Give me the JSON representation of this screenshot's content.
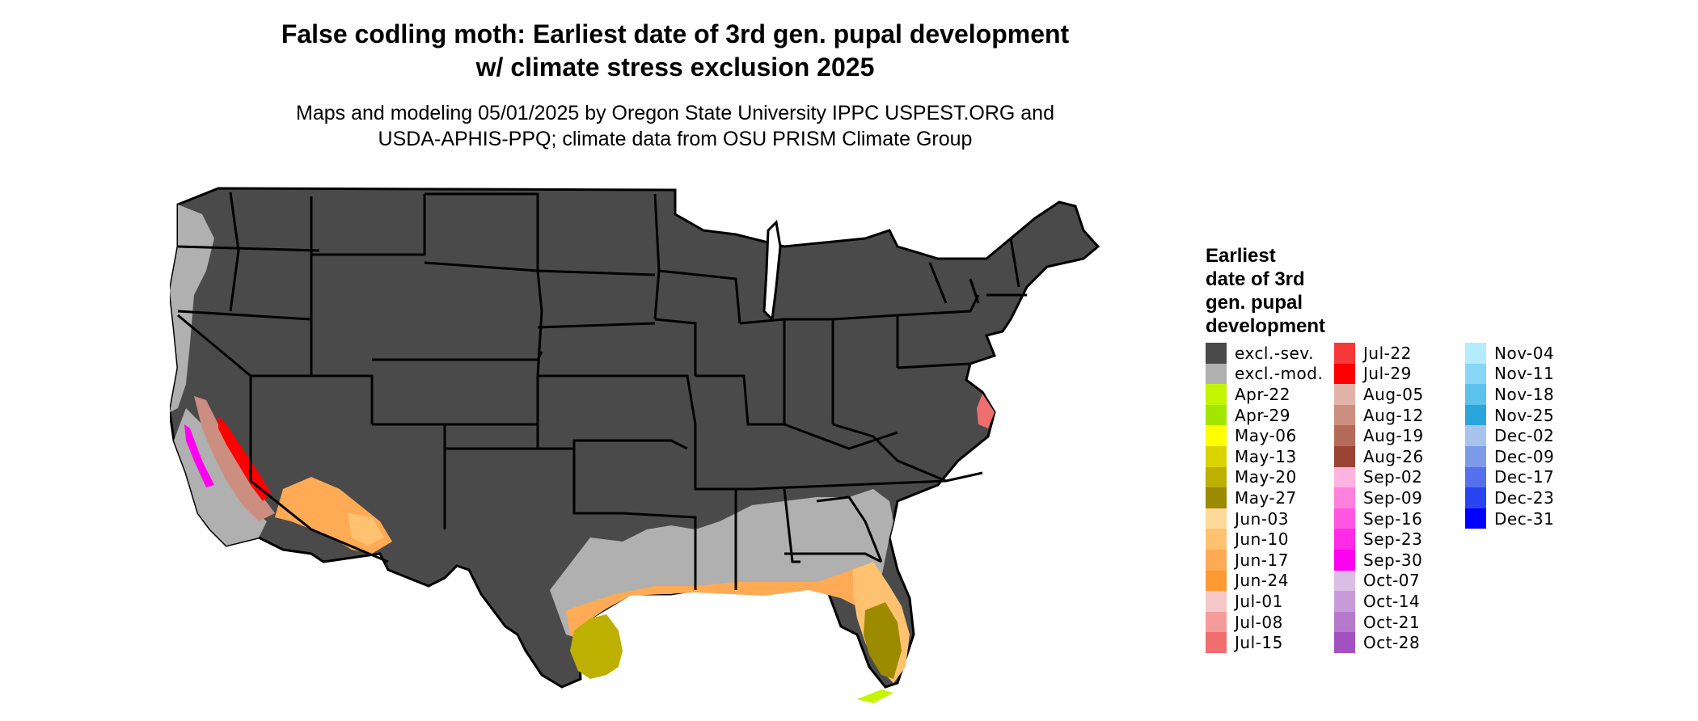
{
  "title_line1": "False codling moth: Earliest date of 3rd gen. pupal development",
  "title_line2": "w/ climate stress exclusion 2025",
  "subtitle_line1": "Maps and modeling 05/01/2025 by Oregon State University IPPC USPEST.ORG and",
  "subtitle_line2": "USDA-APHIS-PPQ; climate data from OSU PRISM Climate Group",
  "legend": {
    "title_lines": [
      "Earliest",
      "date of 3rd",
      "gen. pupal",
      "development"
    ],
    "columns": [
      [
        {
          "label": "excl.-sev.",
          "color": "#4a4a4a"
        },
        {
          "label": "excl.-mod.",
          "color": "#b0b0b0"
        },
        {
          "label": "Apr-22",
          "color": "#c3f500"
        },
        {
          "label": "Apr-29",
          "color": "#a3e600"
        },
        {
          "label": "May-06",
          "color": "#ffff00"
        },
        {
          "label": "May-13",
          "color": "#d9d400"
        },
        {
          "label": "May-20",
          "color": "#bdb000"
        },
        {
          "label": "May-27",
          "color": "#9c8a00"
        },
        {
          "label": "Jun-03",
          "color": "#ffd99a"
        },
        {
          "label": "Jun-10",
          "color": "#ffc270"
        },
        {
          "label": "Jun-17",
          "color": "#ffaa55"
        },
        {
          "label": "Jun-24",
          "color": "#ff9933"
        },
        {
          "label": "Jul-01",
          "color": "#f7c8c8"
        },
        {
          "label": "Jul-08",
          "color": "#f49b9b"
        },
        {
          "label": "Jul-15",
          "color": "#f06e6e"
        }
      ],
      [
        {
          "label": "Jul-22",
          "color": "#f73939"
        },
        {
          "label": "Jul-29",
          "color": "#ff0000"
        },
        {
          "label": "Aug-05",
          "color": "#e2b3a8"
        },
        {
          "label": "Aug-12",
          "color": "#cc8e80"
        },
        {
          "label": "Aug-19",
          "color": "#b56b5a"
        },
        {
          "label": "Aug-26",
          "color": "#9c4433"
        },
        {
          "label": "Sep-02",
          "color": "#ffb3e0"
        },
        {
          "label": "Sep-09",
          "color": "#ff80dd"
        },
        {
          "label": "Sep-16",
          "color": "#ff55e0"
        },
        {
          "label": "Sep-23",
          "color": "#ff2be6"
        },
        {
          "label": "Sep-30",
          "color": "#ff00f0"
        },
        {
          "label": "Oct-07",
          "color": "#dcbde6"
        },
        {
          "label": "Oct-14",
          "color": "#c79bd9"
        },
        {
          "label": "Oct-21",
          "color": "#b67acc"
        },
        {
          "label": "Oct-28",
          "color": "#a352c2"
        }
      ],
      [
        {
          "label": "Nov-04",
          "color": "#b3ecff"
        },
        {
          "label": "Nov-11",
          "color": "#88d6f5"
        },
        {
          "label": "Nov-18",
          "color": "#5cc2ec"
        },
        {
          "label": "Nov-25",
          "color": "#2aa6dd"
        },
        {
          "label": "Dec-02",
          "color": "#a8c4ea"
        },
        {
          "label": "Dec-09",
          "color": "#7d9ae8"
        },
        {
          "label": "Dec-17",
          "color": "#5470ec"
        },
        {
          "label": "Dec-23",
          "color": "#2a44f2"
        },
        {
          "label": "Dec-31",
          "color": "#0000ff"
        }
      ]
    ]
  }
}
